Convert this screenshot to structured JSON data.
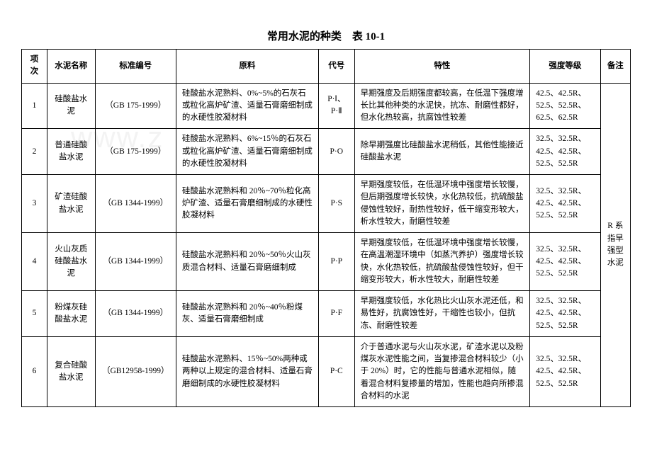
{
  "title": "常用水泥的种类　表 10-1",
  "columns": [
    "项次",
    "水泥名称",
    "标准编号",
    "原料",
    "代号",
    "特性",
    "强度等级",
    "备注"
  ],
  "rows": [
    {
      "idx": "1",
      "name": "硅酸盐水泥",
      "std": "（GB 175-1999）",
      "material": "硅酸盐水泥熟料、0%~5%的石灰石或粒化高炉矿渣、适量石膏磨细制成的水硬性胶凝材料",
      "code": "P·Ⅰ、P·Ⅱ",
      "prop": "早期强度及后期强度都较高，在低温下强度增长比其他种类的水泥快，抗冻、耐磨性都好，但水化热较高，抗腐蚀性较差",
      "grade": "42.5、42.5R、52.5、52.5R、62.5、62.5R"
    },
    {
      "idx": "2",
      "name": "普通硅酸盐水泥",
      "std": "（GB 175-1999）",
      "material": "硅酸盐水泥熟料、6%~15％的石灰石或粒化高炉矿渣、适量石膏磨细制成的水硬性胶凝材料",
      "code": "P·O",
      "prop": "除早期强度比硅酸盐水泥稍低，其他性能接近硅酸盐水泥",
      "grade": "32.5、32.5R、42.5、42.5R、52.5、52.5R"
    },
    {
      "idx": "3",
      "name": "矿渣硅酸盐水泥",
      "std": "（GB 1344-1999）",
      "material": "硅酸盐水泥熟料和 20％~70％粒化高炉矿渣、适量石膏磨细制成的水硬性胶凝材料",
      "code": "P·S",
      "prop": "早期强度较低，在低温环境中强度增长较慢，但后期强度增长较快，水化热较低，抗硫酸盐侵蚀性较好，耐热性较好，低干缩变形较大，析水性较大，耐磨性较差",
      "grade": "32.5、32.5R、42.5、42.5R、52.5、52.5R"
    },
    {
      "idx": "4",
      "name": "火山灰质硅酸盐水泥",
      "std": "（GB 1344-1999）",
      "material": "硅酸盐水泥熟料和 20％~50％火山灰质混合材料、适量石膏磨细制成",
      "code": "P·P",
      "prop": "早期强度较低，在低温环境中强度增长较慢，在高温潮湿环境中（如蒸汽养护）强度增长较快，水化热较低，抗硫酸盐侵蚀性较好，但干缩变形较大，析水性较大，耐磨性较差",
      "grade": "32.5、32.5R、42.5、42.5R、52.5、52.5R"
    },
    {
      "idx": "5",
      "name": "粉煤灰硅酸盐水泥",
      "std": "（GB 1344-1999）",
      "material": "硅酸盐水泥熟料和 20％~40％粉煤灰、适量石膏磨细制成",
      "code": "P·F",
      "prop": "早期强度较低，水化热比火山灰水泥还低，和易性好，抗腐蚀性好，干缩性也较小，但抗冻、耐磨性较差",
      "grade": "32.5、32.5R、42.5、42.5R、52.5、52.5R"
    },
    {
      "idx": "6",
      "name": "复合硅酸盐水泥",
      "std": "（GB12958-1999）",
      "material": "硅酸盐水泥熟料、15％~50%两种或两种以上规定的混合材料、适量石膏磨细制成的水硬性胶凝材料",
      "code": "P·C",
      "prop": "介于普通水泥与火山灰水泥，矿渣水泥以及粉煤灰水泥性能之间，当复掺混合材料较少（小于 20%）时，它的性能与普通水泥相似，随着混合材料复掺量的增加，性能也趋向所掺混合材料的水泥",
      "grade": "32.5、32.5R、42.5、42.5R、52.5、52.5R"
    }
  ],
  "note": "R 系指早强型水泥",
  "watermark": "www.z"
}
